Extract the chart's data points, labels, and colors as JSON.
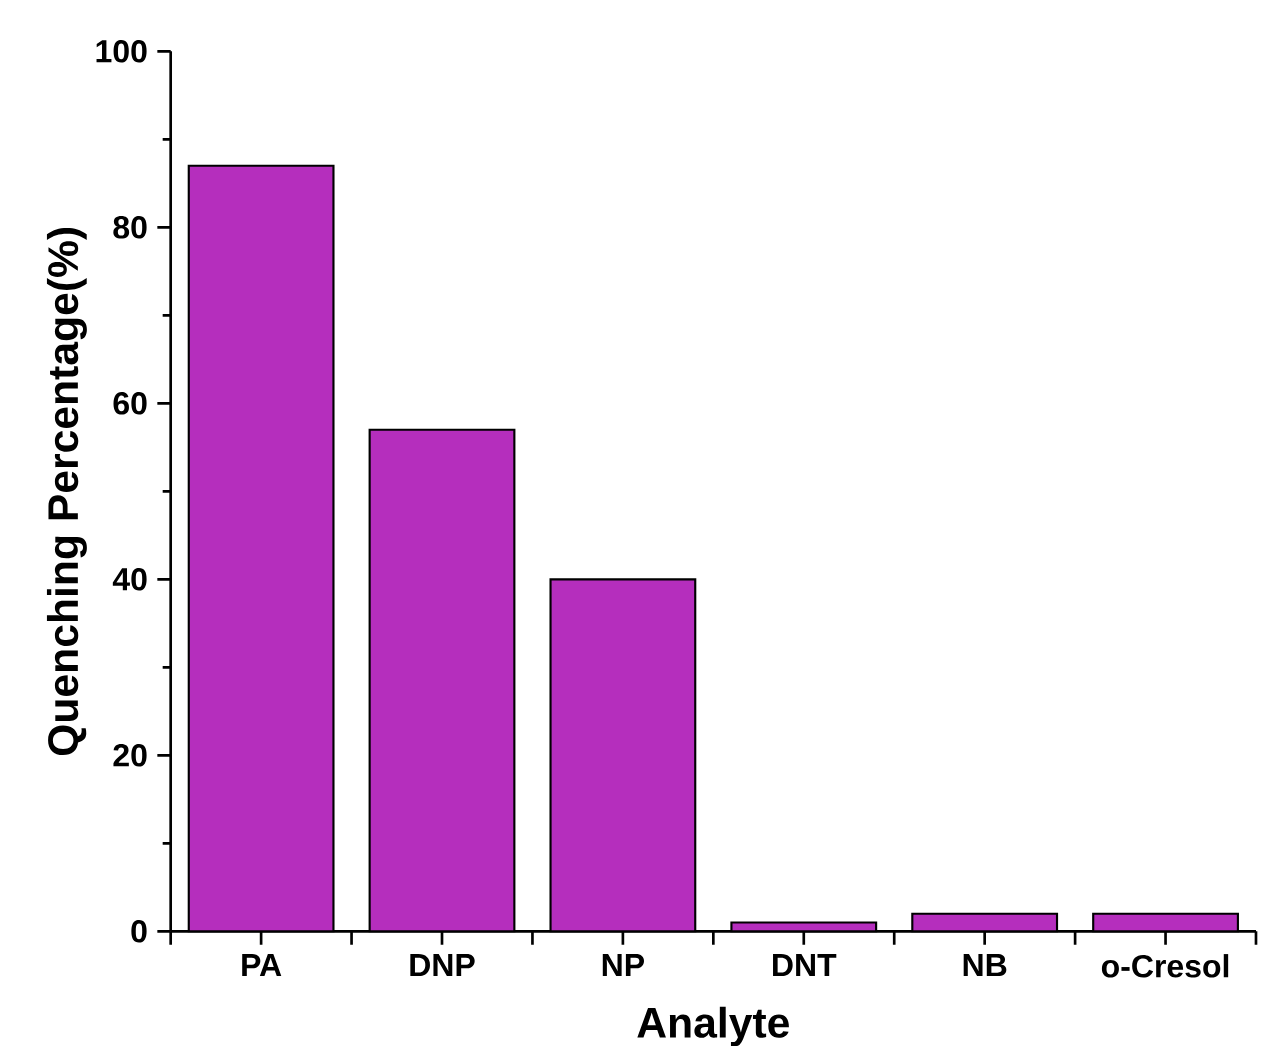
{
  "chart_data": {
    "type": "bar",
    "xlabel": "Analyte",
    "ylabel": "Quenching Percentage(%)",
    "categories": [
      "PA",
      "DNP",
      "NP",
      "DNT",
      "NB",
      "o-Cresol"
    ],
    "values": [
      87,
      57,
      40,
      1,
      2,
      2
    ],
    "color": "#b52ebd",
    "ylim": [
      0,
      100
    ],
    "yticks": [
      0,
      20,
      40,
      60,
      80,
      100
    ],
    "grid": false
  }
}
